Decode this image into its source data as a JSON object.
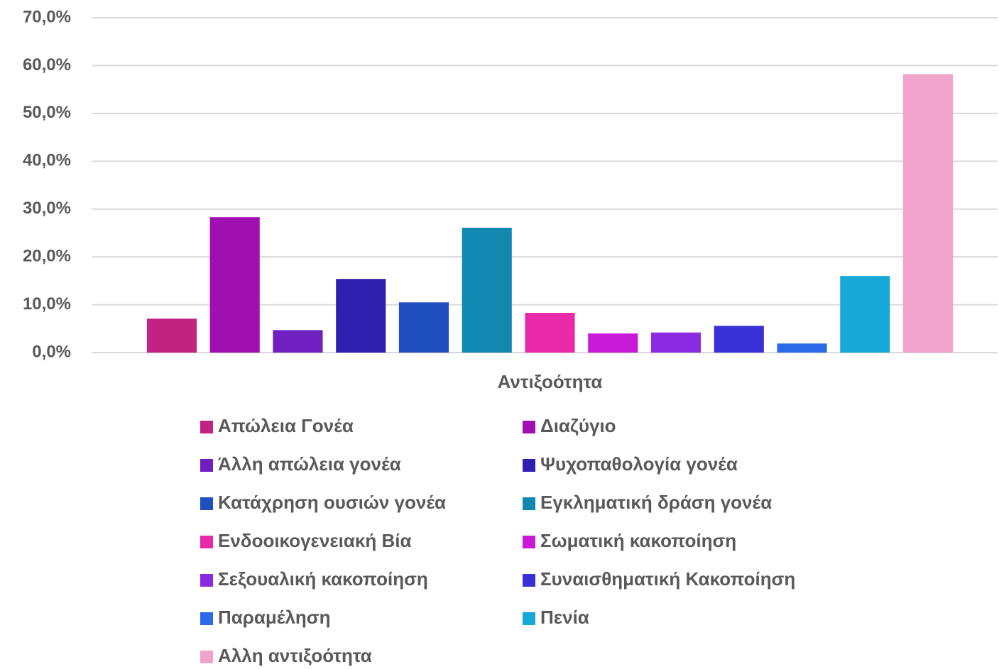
{
  "chart_data": {
    "type": "bar",
    "categories": [
      "Αντιξοότητα"
    ],
    "series": [
      {
        "name": "Απώλεια Γονέα",
        "color": "#c02380",
        "values": [
          7.1
        ]
      },
      {
        "name": "Διαζύγιο",
        "color": "#a010b0",
        "values": [
          28.3
        ]
      },
      {
        "name": "Άλλη απώλεια γονέα",
        "color": "#7020c0",
        "values": [
          4.7
        ]
      },
      {
        "name": "Ψυχοπαθολογία γονέα",
        "color": "#3020b0",
        "values": [
          15.4
        ]
      },
      {
        "name": "Κατάχρηση ουσιών γονέα",
        "color": "#2050c0",
        "values": [
          10.5
        ]
      },
      {
        "name": "Εγκληματική δράση γονέα",
        "color": "#1088b0",
        "values": [
          26.1
        ]
      },
      {
        "name": "Ενδοοικογενειακή Βία",
        "color": "#e82aa8",
        "values": [
          8.3
        ]
      },
      {
        "name": "Σωματική κακοποίηση",
        "color": "#c818d8",
        "values": [
          4.0
        ]
      },
      {
        "name": "Σεξουαλική κακοποίηση",
        "color": "#8a2be2",
        "values": [
          4.2
        ]
      },
      {
        "name": "Συναισθηματική Κακοποίηση",
        "color": "#3a30d8",
        "values": [
          5.6
        ]
      },
      {
        "name": "Παραμέληση",
        "color": "#2a6ae8",
        "values": [
          1.9
        ]
      },
      {
        "name": "Πενία",
        "color": "#18a8d8",
        "values": [
          16.0
        ]
      },
      {
        "name": "Αλλη αντιξοότητα",
        "color": "#f0a4cc",
        "values": [
          58.2
        ]
      }
    ],
    "ylim": [
      0,
      70
    ],
    "yticks": [
      {
        "value": 0,
        "label": "0,0%"
      },
      {
        "value": 10,
        "label": "10,0%"
      },
      {
        "value": 20,
        "label": "20,0%"
      },
      {
        "value": 30,
        "label": "30,0%"
      },
      {
        "value": 40,
        "label": "40,0%"
      },
      {
        "value": 50,
        "label": "50,0%"
      },
      {
        "value": 60,
        "label": "60,0%"
      },
      {
        "value": 70,
        "label": "70,0%"
      }
    ],
    "grid": true,
    "legend": "bottom"
  }
}
